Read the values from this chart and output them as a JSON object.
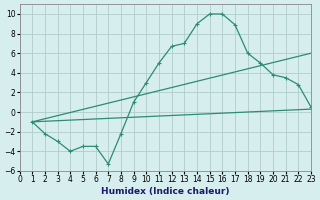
{
  "xlabel": "Humidex (Indice chaleur)",
  "bg_color": "#d6eeee",
  "grid_color": "#b0cccc",
  "line_color": "#2e8b74",
  "xlim": [
    0,
    23
  ],
  "ylim": [
    -6,
    11
  ],
  "xticks": [
    0,
    1,
    2,
    3,
    4,
    5,
    6,
    7,
    8,
    9,
    10,
    11,
    12,
    13,
    14,
    15,
    16,
    17,
    18,
    19,
    20,
    21,
    22,
    23
  ],
  "yticks": [
    -6,
    -4,
    -2,
    0,
    2,
    4,
    6,
    8,
    10
  ],
  "line1_x": [
    1,
    2,
    3,
    4,
    5,
    6,
    7,
    8,
    9,
    10,
    11,
    12,
    13,
    14,
    15,
    16,
    17,
    18,
    19,
    20,
    21,
    22,
    23
  ],
  "line1_y": [
    -1,
    -2.2,
    -3,
    -4,
    -3.5,
    -3.5,
    -5.3,
    -2.2,
    1,
    3,
    5,
    6.7,
    7,
    9,
    10,
    10,
    8.9,
    6,
    5,
    3.8,
    3.5,
    2.8,
    0.5
  ],
  "line2_x": [
    1,
    23
  ],
  "line2_y": [
    -1,
    0.3
  ],
  "line3_x": [
    1,
    23
  ],
  "line3_y": [
    -1,
    6
  ],
  "marker": "+"
}
